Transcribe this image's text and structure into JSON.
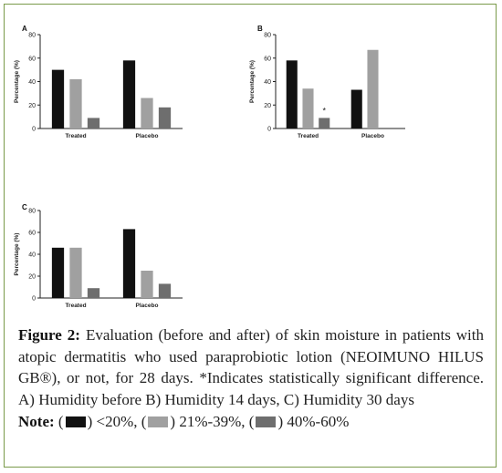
{
  "colors": {
    "low": "#111111",
    "mid": "#a0a0a0",
    "high": "#6e6e6e",
    "frame": "#7a9a4a"
  },
  "chart_data": [
    {
      "panel": "A",
      "type": "bar",
      "categories": [
        "Treated",
        "Placebo"
      ],
      "series": [
        {
          "name": "<20%",
          "values": [
            50,
            58
          ]
        },
        {
          "name": "21%-39%",
          "values": [
            42,
            26
          ]
        },
        {
          "name": "40%-60%",
          "values": [
            9,
            18
          ]
        }
      ],
      "ylabel": "Percentage (%)",
      "ylim": [
        0,
        80
      ],
      "yticks": [
        0,
        20,
        40,
        60,
        80
      ],
      "annotations": []
    },
    {
      "panel": "B",
      "type": "bar",
      "categories": [
        "Treated",
        "Placebo"
      ],
      "series": [
        {
          "name": "<20%",
          "values": [
            58,
            33
          ]
        },
        {
          "name": "21%-39%",
          "values": [
            34,
            67
          ]
        },
        {
          "name": "40%-60%",
          "values": [
            9,
            0
          ]
        }
      ],
      "ylabel": "Percentage (%)",
      "ylim": [
        0,
        80
      ],
      "yticks": [
        0,
        20,
        40,
        60,
        80
      ],
      "annotations": [
        {
          "text": "*",
          "category": "Treated",
          "series": "40%-60%"
        }
      ]
    },
    {
      "panel": "C",
      "type": "bar",
      "categories": [
        "Treated",
        "Placebo"
      ],
      "series": [
        {
          "name": "<20%",
          "values": [
            46,
            63
          ]
        },
        {
          "name": "21%-39%",
          "values": [
            46,
            25
          ]
        },
        {
          "name": "40%-60%",
          "values": [
            9,
            13
          ]
        }
      ],
      "ylabel": "Percentage (%)",
      "ylim": [
        0,
        80
      ],
      "yticks": [
        0,
        20,
        40,
        60,
        80
      ],
      "annotations": []
    }
  ],
  "caption": {
    "label": "Figure 2:",
    "text": "Evaluation (before and after) of skin moisture in patients with atopic dermatitis who used paraprobiotic lotion (NEOIMUNO HILUS GB®), or not, for 28 days. *Indicates statistically significant difference. A) Humidity before B) Humidity 14 days, C) Humidity 30 days",
    "note_label": "Note:",
    "note_open": "(",
    "note_items": [
      ") <20%, (",
      ") 21%-39%, (",
      ") 40%-60%"
    ]
  }
}
